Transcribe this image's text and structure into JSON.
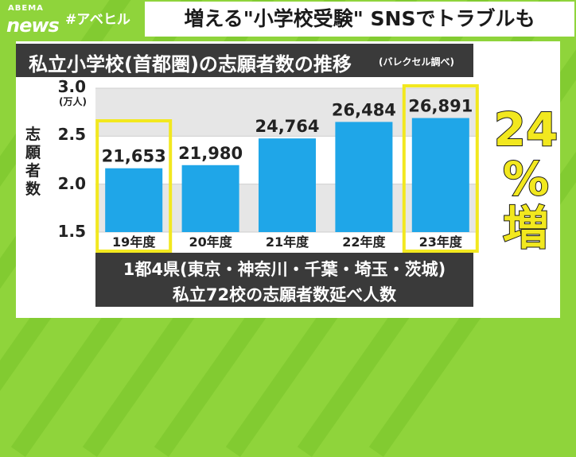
{
  "header": {
    "logo_small": "ABEMA",
    "logo_big": "news",
    "hashtag": "#アベヒル",
    "headline": "増える\"小学校受験\" SNSでトラブルも"
  },
  "chart_title": "私立小学校(首都圏)の志願者数の推移",
  "chart_source": "(バレクセル調べ)",
  "chart_data": {
    "type": "bar",
    "title": "私立小学校(首都圏)の志願者数の推移",
    "ylabel": "志願者数",
    "unit": "(万人)",
    "ylim": [
      1.5,
      3.0
    ],
    "yticks": [
      "3.0",
      "2.5",
      "2.0",
      "1.5"
    ],
    "categories": [
      "19年度",
      "20年度",
      "21年度",
      "22年度",
      "23年度"
    ],
    "values": [
      2.1653,
      2.198,
      2.4764,
      2.6484,
      2.6891
    ],
    "data_labels": [
      "21,653",
      "21,980",
      "24,764",
      "26,484",
      "26,891"
    ],
    "highlighted": [
      "19年度",
      "23年度"
    ],
    "bar_color": "#1fa6e8",
    "highlight_color": "#f2e81f"
  },
  "annotation": {
    "pct": "24",
    "percent_sign": "%",
    "increase": "増"
  },
  "note": {
    "line1": "1都4県(東京・神奈川・千葉・埼玉・茨城)",
    "line2": "私立72校の志願者数延べ人数"
  }
}
